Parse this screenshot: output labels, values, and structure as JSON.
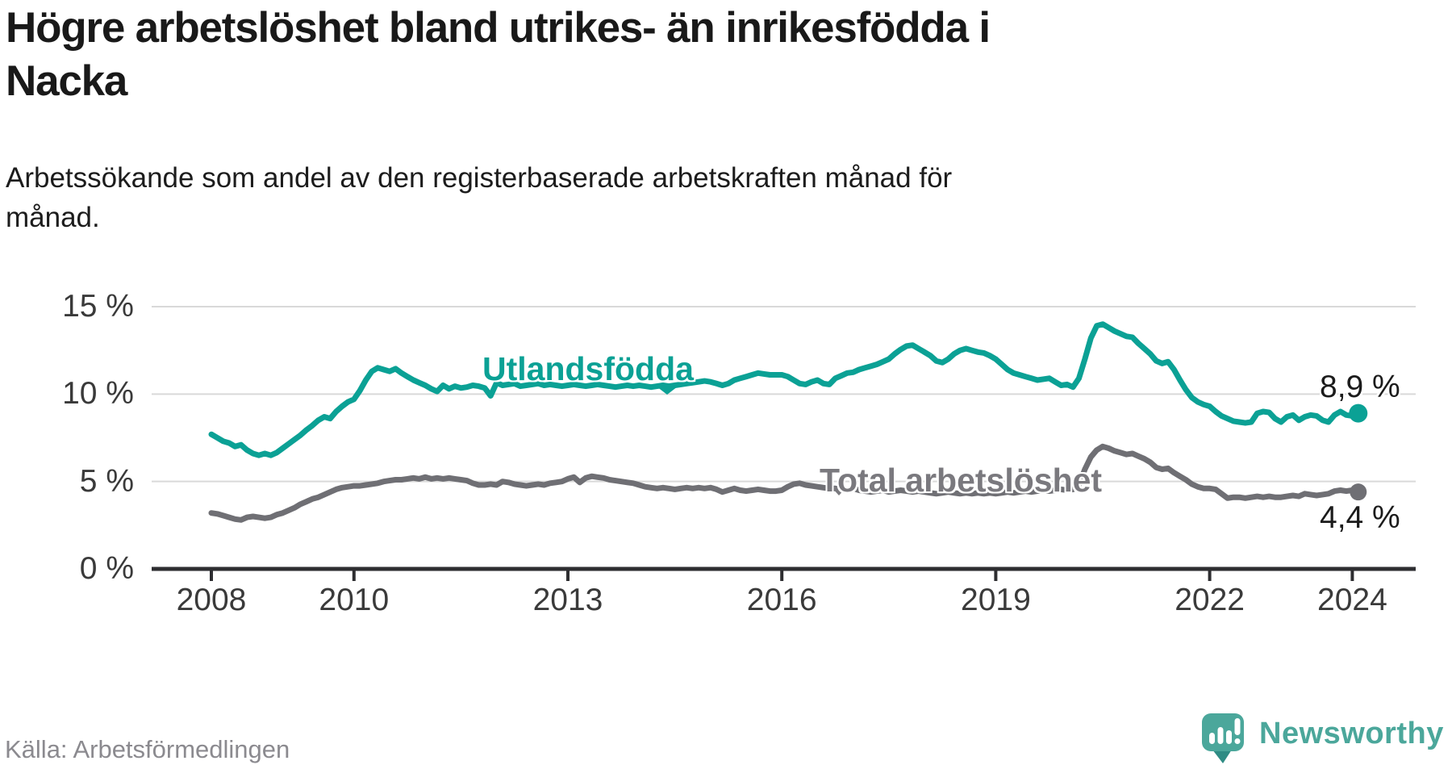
{
  "title": {
    "line1": "Högre arbetslöshet bland utrikes- än inrikesfödda i",
    "line2": "Nacka"
  },
  "subtitle": {
    "line1": "Arbetssökande som andel av den registerbaserade arbetskraften månad för",
    "line2": "månad."
  },
  "source": "Källa: Arbetsförmedlingen",
  "brand": {
    "name": "Newsworthy",
    "logo_icon": "speech-bubble-bar-chart-icon",
    "color": "#4ba79b"
  },
  "chart_data": {
    "type": "line",
    "title": "Högre arbetslöshet bland utrikes- än inrikesfödda i Nacka",
    "xlabel": "",
    "ylabel": "Arbetssökande som andel av den registerbaserade arbetskraften",
    "x_unit": "månad (decimalår, start januari 2008)",
    "x_start": 2008,
    "x_step_months": 1,
    "xlim": [
      2007.2,
      2024.9
    ],
    "ylim": [
      0,
      15
    ],
    "grid": "horizontal",
    "grid_color": "#d9d9d9",
    "axis_color": "#2e2e31",
    "x_ticks": [
      2008,
      2010,
      2013,
      2016,
      2019,
      2022,
      2024
    ],
    "y_ticks": [
      {
        "value": 0,
        "label": "0 %"
      },
      {
        "value": 5,
        "label": "5 %"
      },
      {
        "value": 10,
        "label": "10 %"
      },
      {
        "value": 15,
        "label": "15 %"
      }
    ],
    "legend": "inline-labels",
    "series": [
      {
        "id": "utlandsfodda",
        "name": "Utlandsfödda",
        "color": "#0ba195",
        "label_color": "#0ba195",
        "end_value": 8.9,
        "end_label": "8,9 %",
        "values": [
          7.7,
          7.5,
          7.3,
          7.2,
          7.0,
          7.1,
          6.8,
          6.6,
          6.5,
          6.6,
          6.5,
          6.65,
          6.9,
          7.15,
          7.4,
          7.65,
          7.95,
          8.2,
          8.5,
          8.7,
          8.6,
          9.0,
          9.3,
          9.55,
          9.7,
          10.2,
          10.8,
          11.3,
          11.5,
          11.4,
          11.3,
          11.45,
          11.2,
          11.0,
          10.8,
          10.65,
          10.5,
          10.3,
          10.15,
          10.5,
          10.3,
          10.45,
          10.35,
          10.4,
          10.5,
          10.45,
          10.35,
          9.9,
          10.65,
          10.5,
          10.55,
          10.6,
          10.45,
          10.5,
          10.55,
          10.6,
          10.5,
          10.55,
          10.5,
          10.45,
          10.5,
          10.55,
          10.5,
          10.45,
          10.5,
          10.55,
          10.5,
          10.45,
          10.4,
          10.45,
          10.5,
          10.45,
          10.5,
          10.45,
          10.4,
          10.45,
          10.5,
          10.45,
          10.5,
          10.55,
          10.6,
          10.65,
          10.7,
          10.75,
          10.7,
          10.6,
          10.5,
          10.6,
          10.8,
          10.9,
          11.0,
          11.1,
          11.2,
          11.15,
          11.1,
          11.1,
          11.1,
          11.0,
          10.8,
          10.6,
          10.55,
          10.7,
          10.8,
          10.6,
          10.55,
          10.9,
          11.05,
          11.2,
          11.25,
          11.4,
          11.5,
          11.6,
          11.7,
          11.85,
          12.0,
          12.3,
          12.55,
          12.75,
          12.8,
          12.6,
          12.4,
          12.2,
          11.9,
          11.8,
          12.0,
          12.3,
          12.5,
          12.6,
          12.5,
          12.4,
          12.35,
          12.2,
          12.0,
          11.7,
          11.4,
          11.2,
          11.1,
          11.0,
          10.9,
          10.8,
          10.85,
          10.9,
          10.7,
          10.5,
          10.55,
          10.4,
          10.9,
          12.0,
          13.2,
          13.9,
          14.0,
          13.8,
          13.6,
          13.45,
          13.3,
          13.25,
          12.9,
          12.6,
          12.3,
          11.9,
          11.75,
          11.85,
          11.4,
          10.8,
          10.25,
          9.8,
          9.55,
          9.4,
          9.3,
          9.0,
          8.75,
          8.6,
          8.45,
          8.4,
          8.35,
          8.4,
          8.9,
          9.0,
          8.95,
          8.6,
          8.4,
          8.7,
          8.8,
          8.5,
          8.7,
          8.8,
          8.75,
          8.5,
          8.4,
          8.8,
          9.0,
          8.8,
          8.75,
          8.9
        ]
      },
      {
        "id": "total",
        "name": "Total arbetslöshet",
        "color": "#6f6f74",
        "label_color": "#7a797e",
        "end_value": 4.4,
        "end_label": "4,4 %",
        "values": [
          3.2,
          3.15,
          3.05,
          2.95,
          2.85,
          2.8,
          2.95,
          3.0,
          2.95,
          2.9,
          2.95,
          3.1,
          3.2,
          3.35,
          3.5,
          3.7,
          3.85,
          4.0,
          4.1,
          4.25,
          4.4,
          4.55,
          4.65,
          4.7,
          4.75,
          4.75,
          4.8,
          4.85,
          4.9,
          5.0,
          5.05,
          5.1,
          5.1,
          5.15,
          5.2,
          5.15,
          5.25,
          5.15,
          5.2,
          5.15,
          5.2,
          5.15,
          5.1,
          5.05,
          4.9,
          4.8,
          4.8,
          4.85,
          4.8,
          5.0,
          4.95,
          4.85,
          4.8,
          4.75,
          4.8,
          4.85,
          4.8,
          4.9,
          4.95,
          5.0,
          5.15,
          5.25,
          4.95,
          5.2,
          5.3,
          5.25,
          5.2,
          5.1,
          5.05,
          5.0,
          4.95,
          4.9,
          4.8,
          4.7,
          4.65,
          4.6,
          4.65,
          4.6,
          4.55,
          4.6,
          4.65,
          4.6,
          4.65,
          4.6,
          4.65,
          4.55,
          4.4,
          4.5,
          4.6,
          4.5,
          4.45,
          4.5,
          4.55,
          4.5,
          4.45,
          4.45,
          4.5,
          4.7,
          4.85,
          4.9,
          4.8,
          4.75,
          4.7,
          4.65,
          4.6,
          4.6,
          4.55,
          4.5,
          4.6,
          4.5,
          4.45,
          4.4,
          4.45,
          4.5,
          4.4,
          4.45,
          4.5,
          4.45,
          4.4,
          4.45,
          4.4,
          4.35,
          4.3,
          4.35,
          4.4,
          4.35,
          4.3,
          4.35,
          4.3,
          4.35,
          4.3,
          4.35,
          4.3,
          4.35,
          4.4,
          4.35,
          4.4,
          4.45,
          4.4,
          4.45,
          4.5,
          4.45,
          4.5,
          4.55,
          4.5,
          4.55,
          4.8,
          5.7,
          6.4,
          6.8,
          7.0,
          6.9,
          6.75,
          6.65,
          6.55,
          6.6,
          6.45,
          6.3,
          6.1,
          5.8,
          5.7,
          5.75,
          5.5,
          5.3,
          5.1,
          4.85,
          4.7,
          4.6,
          4.6,
          4.55,
          4.3,
          4.05,
          4.1,
          4.1,
          4.05,
          4.1,
          4.15,
          4.1,
          4.15,
          4.1,
          4.1,
          4.15,
          4.2,
          4.15,
          4.3,
          4.25,
          4.2,
          4.25,
          4.3,
          4.45,
          4.5,
          4.45,
          4.5,
          4.4
        ]
      }
    ]
  }
}
